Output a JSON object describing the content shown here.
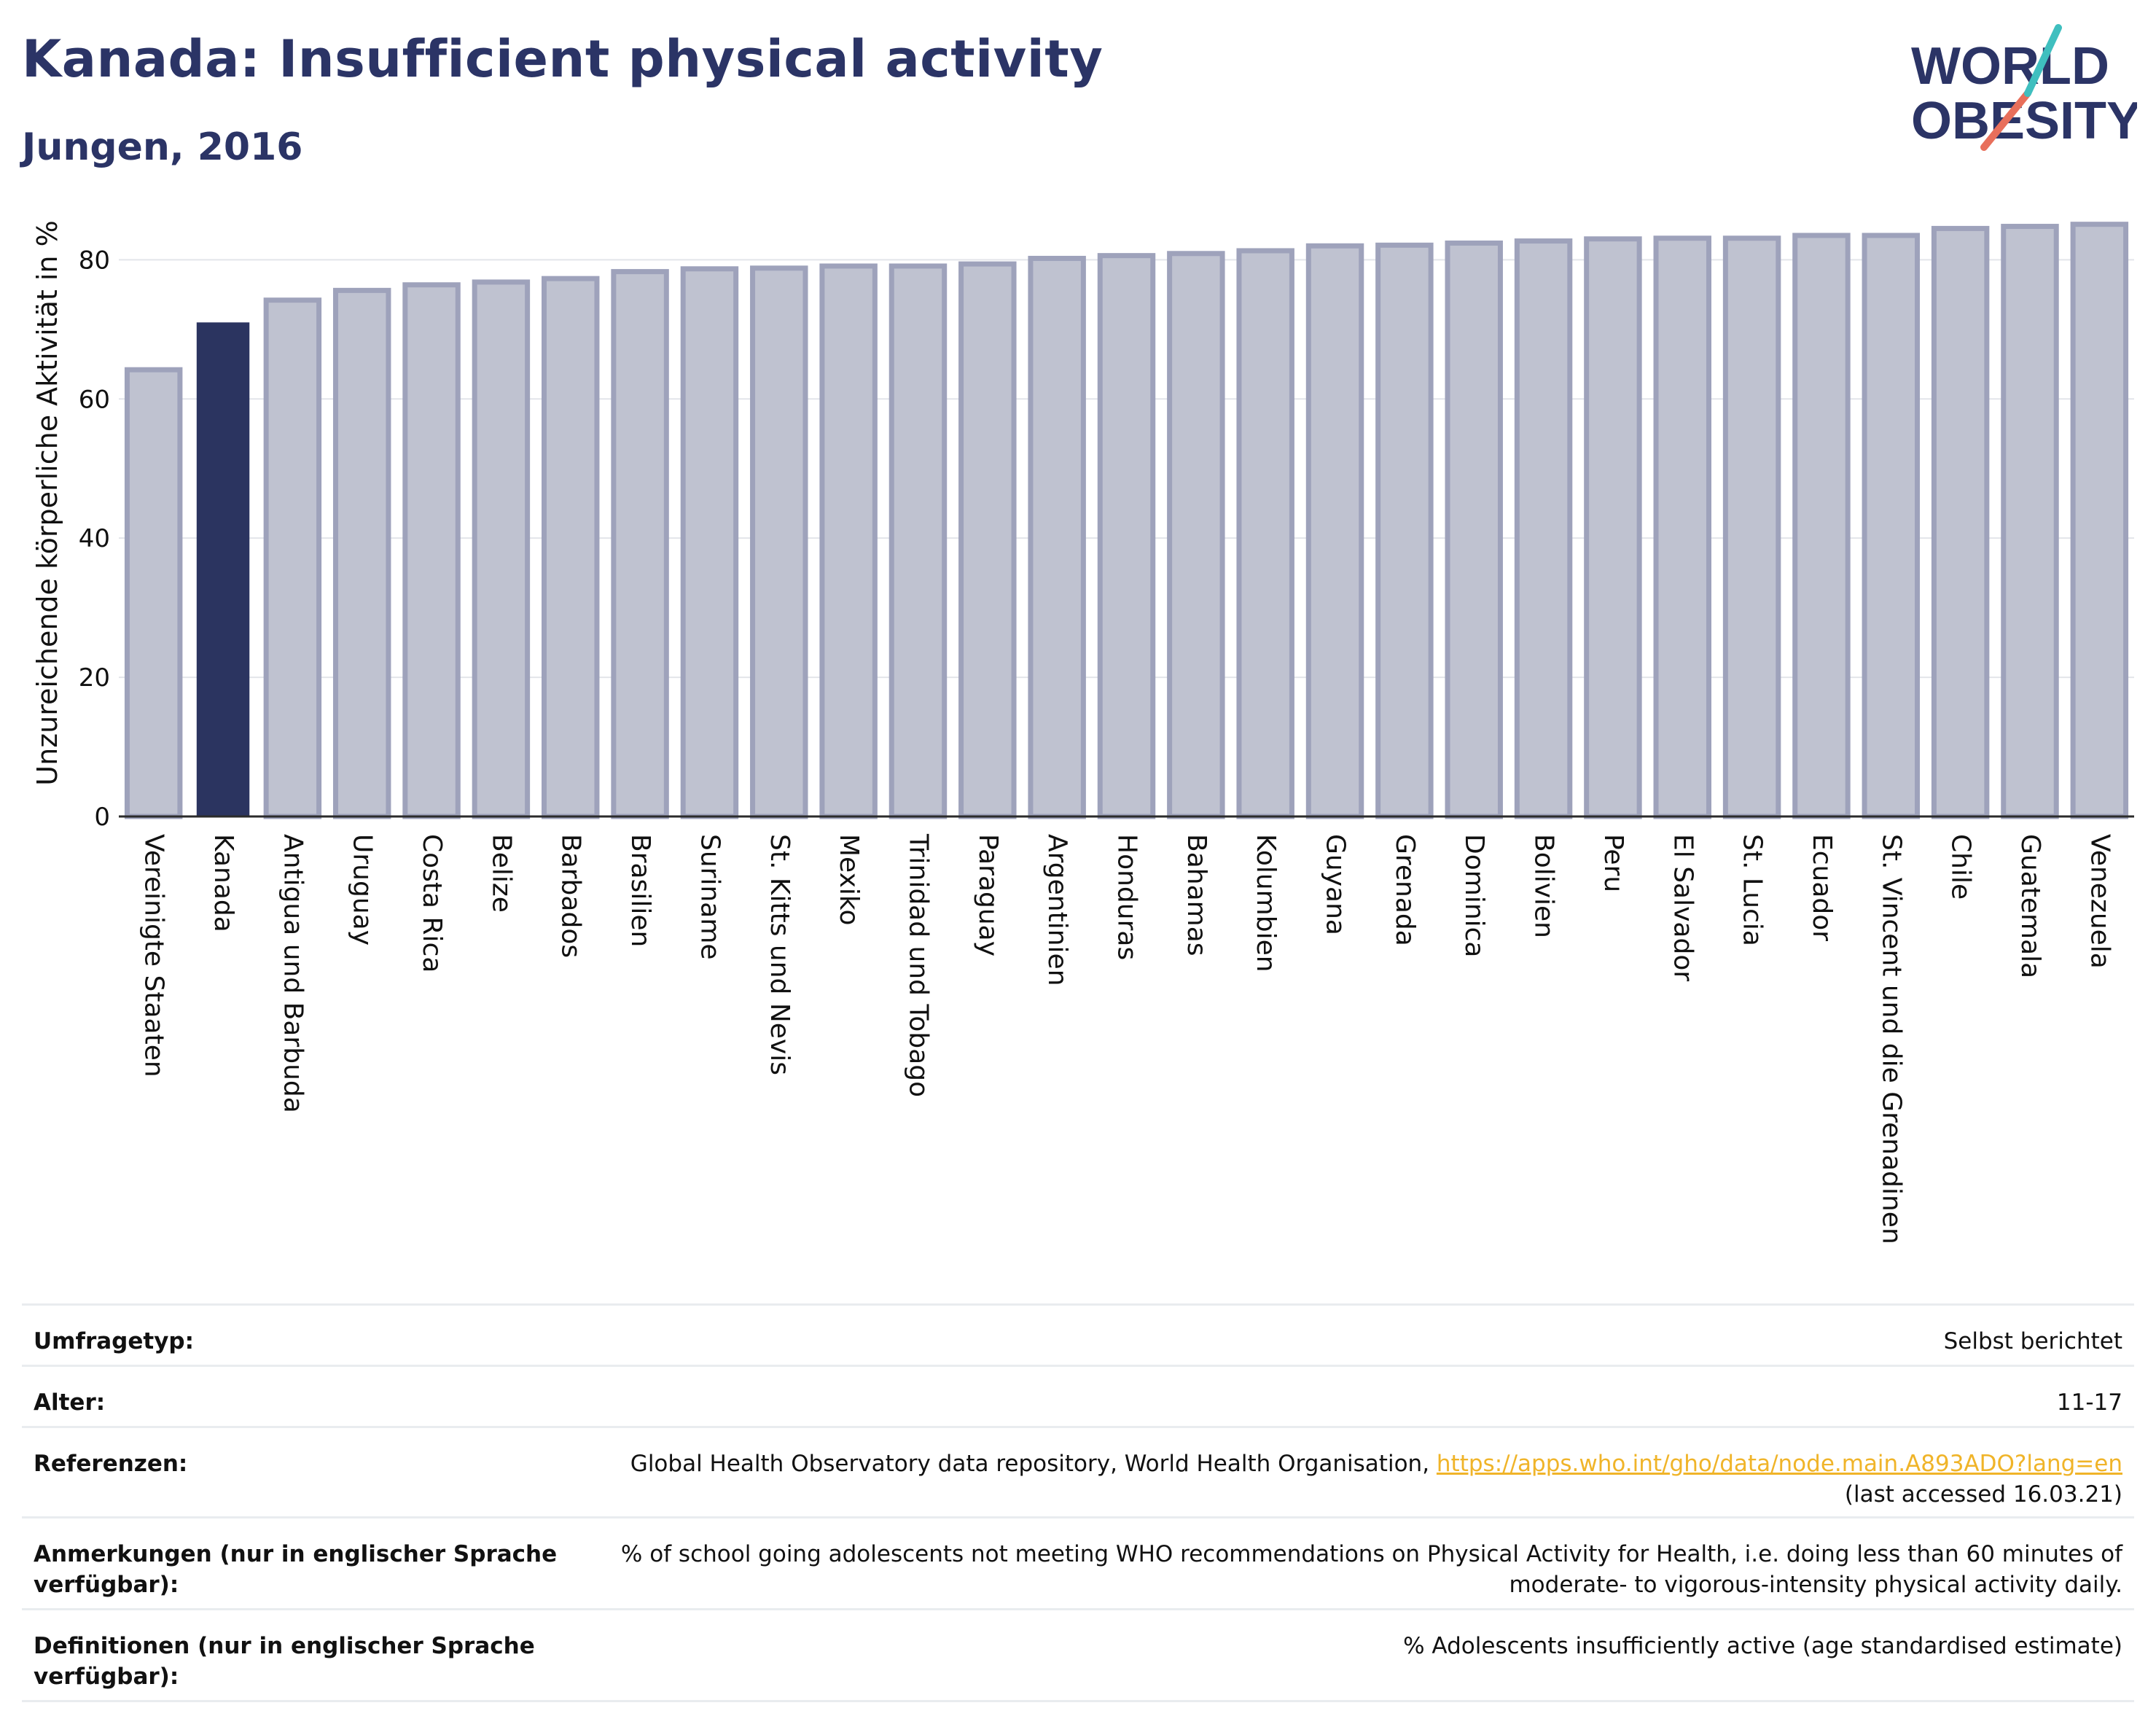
{
  "header": {
    "title": "Kanada: Insufficient physical activity",
    "subtitle": "Jungen, 2016"
  },
  "logo": {
    "line1": "WORLD",
    "line2": "OBESITY"
  },
  "colors": {
    "highlight": "#2b3460",
    "bar_fill": "#bfc2d0",
    "bar_stroke": "#9ea2bb",
    "title": "#2b3466",
    "accent_teal": "#3fbfbf",
    "accent_coral": "#e86f5b",
    "link": "#f0b429"
  },
  "chart_data": {
    "type": "bar",
    "ylabel": "Unzureichende körperliche Aktivität in %",
    "ylim": [
      0,
      88
    ],
    "yticks": [
      0,
      20,
      40,
      60,
      80
    ],
    "grid": true,
    "highlight": "Kanada",
    "categories": [
      "Vereinigte Staaten",
      "Kanada",
      "Antigua und Barbuda",
      "Uruguay",
      "Costa Rica",
      "Belize",
      "Barbados",
      "Brasilien",
      "Suriname",
      "St. Kitts und Nevis",
      "Mexiko",
      "Trinidad und Tobago",
      "Paraguay",
      "Argentinien",
      "Honduras",
      "Bahamas",
      "Kolumbien",
      "Guyana",
      "Grenada",
      "Dominica",
      "Bolivien",
      "Peru",
      "El Salvador",
      "St. Lucia",
      "Ecuador",
      "St. Vincent und die Grenadinen",
      "Chile",
      "Guatemala",
      "Venezuela"
    ],
    "values": [
      64.2,
      71.0,
      74.2,
      75.6,
      76.4,
      76.8,
      77.3,
      78.3,
      78.7,
      78.8,
      79.1,
      79.1,
      79.4,
      80.2,
      80.6,
      80.9,
      81.3,
      82.0,
      82.1,
      82.4,
      82.7,
      83.0,
      83.1,
      83.1,
      83.5,
      83.5,
      84.5,
      84.8,
      85.1
    ]
  },
  "info": {
    "rows": [
      {
        "label": "Umfragetyp:",
        "value": "Selbst berichtet"
      },
      {
        "label": "Alter:",
        "value": "11-17"
      },
      {
        "label": "Referenzen:",
        "value_prefix": "Global Health Observatory data repository, World Health Organisation, ",
        "link": "https://apps.who.int/gho/data/node.main.A893ADO?lang=en",
        "value_suffix": "(last accessed 16.03.21)"
      },
      {
        "label": "Anmerkungen (nur in englischer Sprache verfügbar):",
        "value": "% of school going adolescents not meeting WHO recommendations on Physical Activity for Health, i.e. doing less than 60 minutes of moderate- to vigorous-intensity physical activity daily."
      },
      {
        "label": "Definitionen (nur in englischer Sprache verfügbar):",
        "value": "% Adolescents insufficiently active (age standardised estimate)"
      }
    ]
  }
}
